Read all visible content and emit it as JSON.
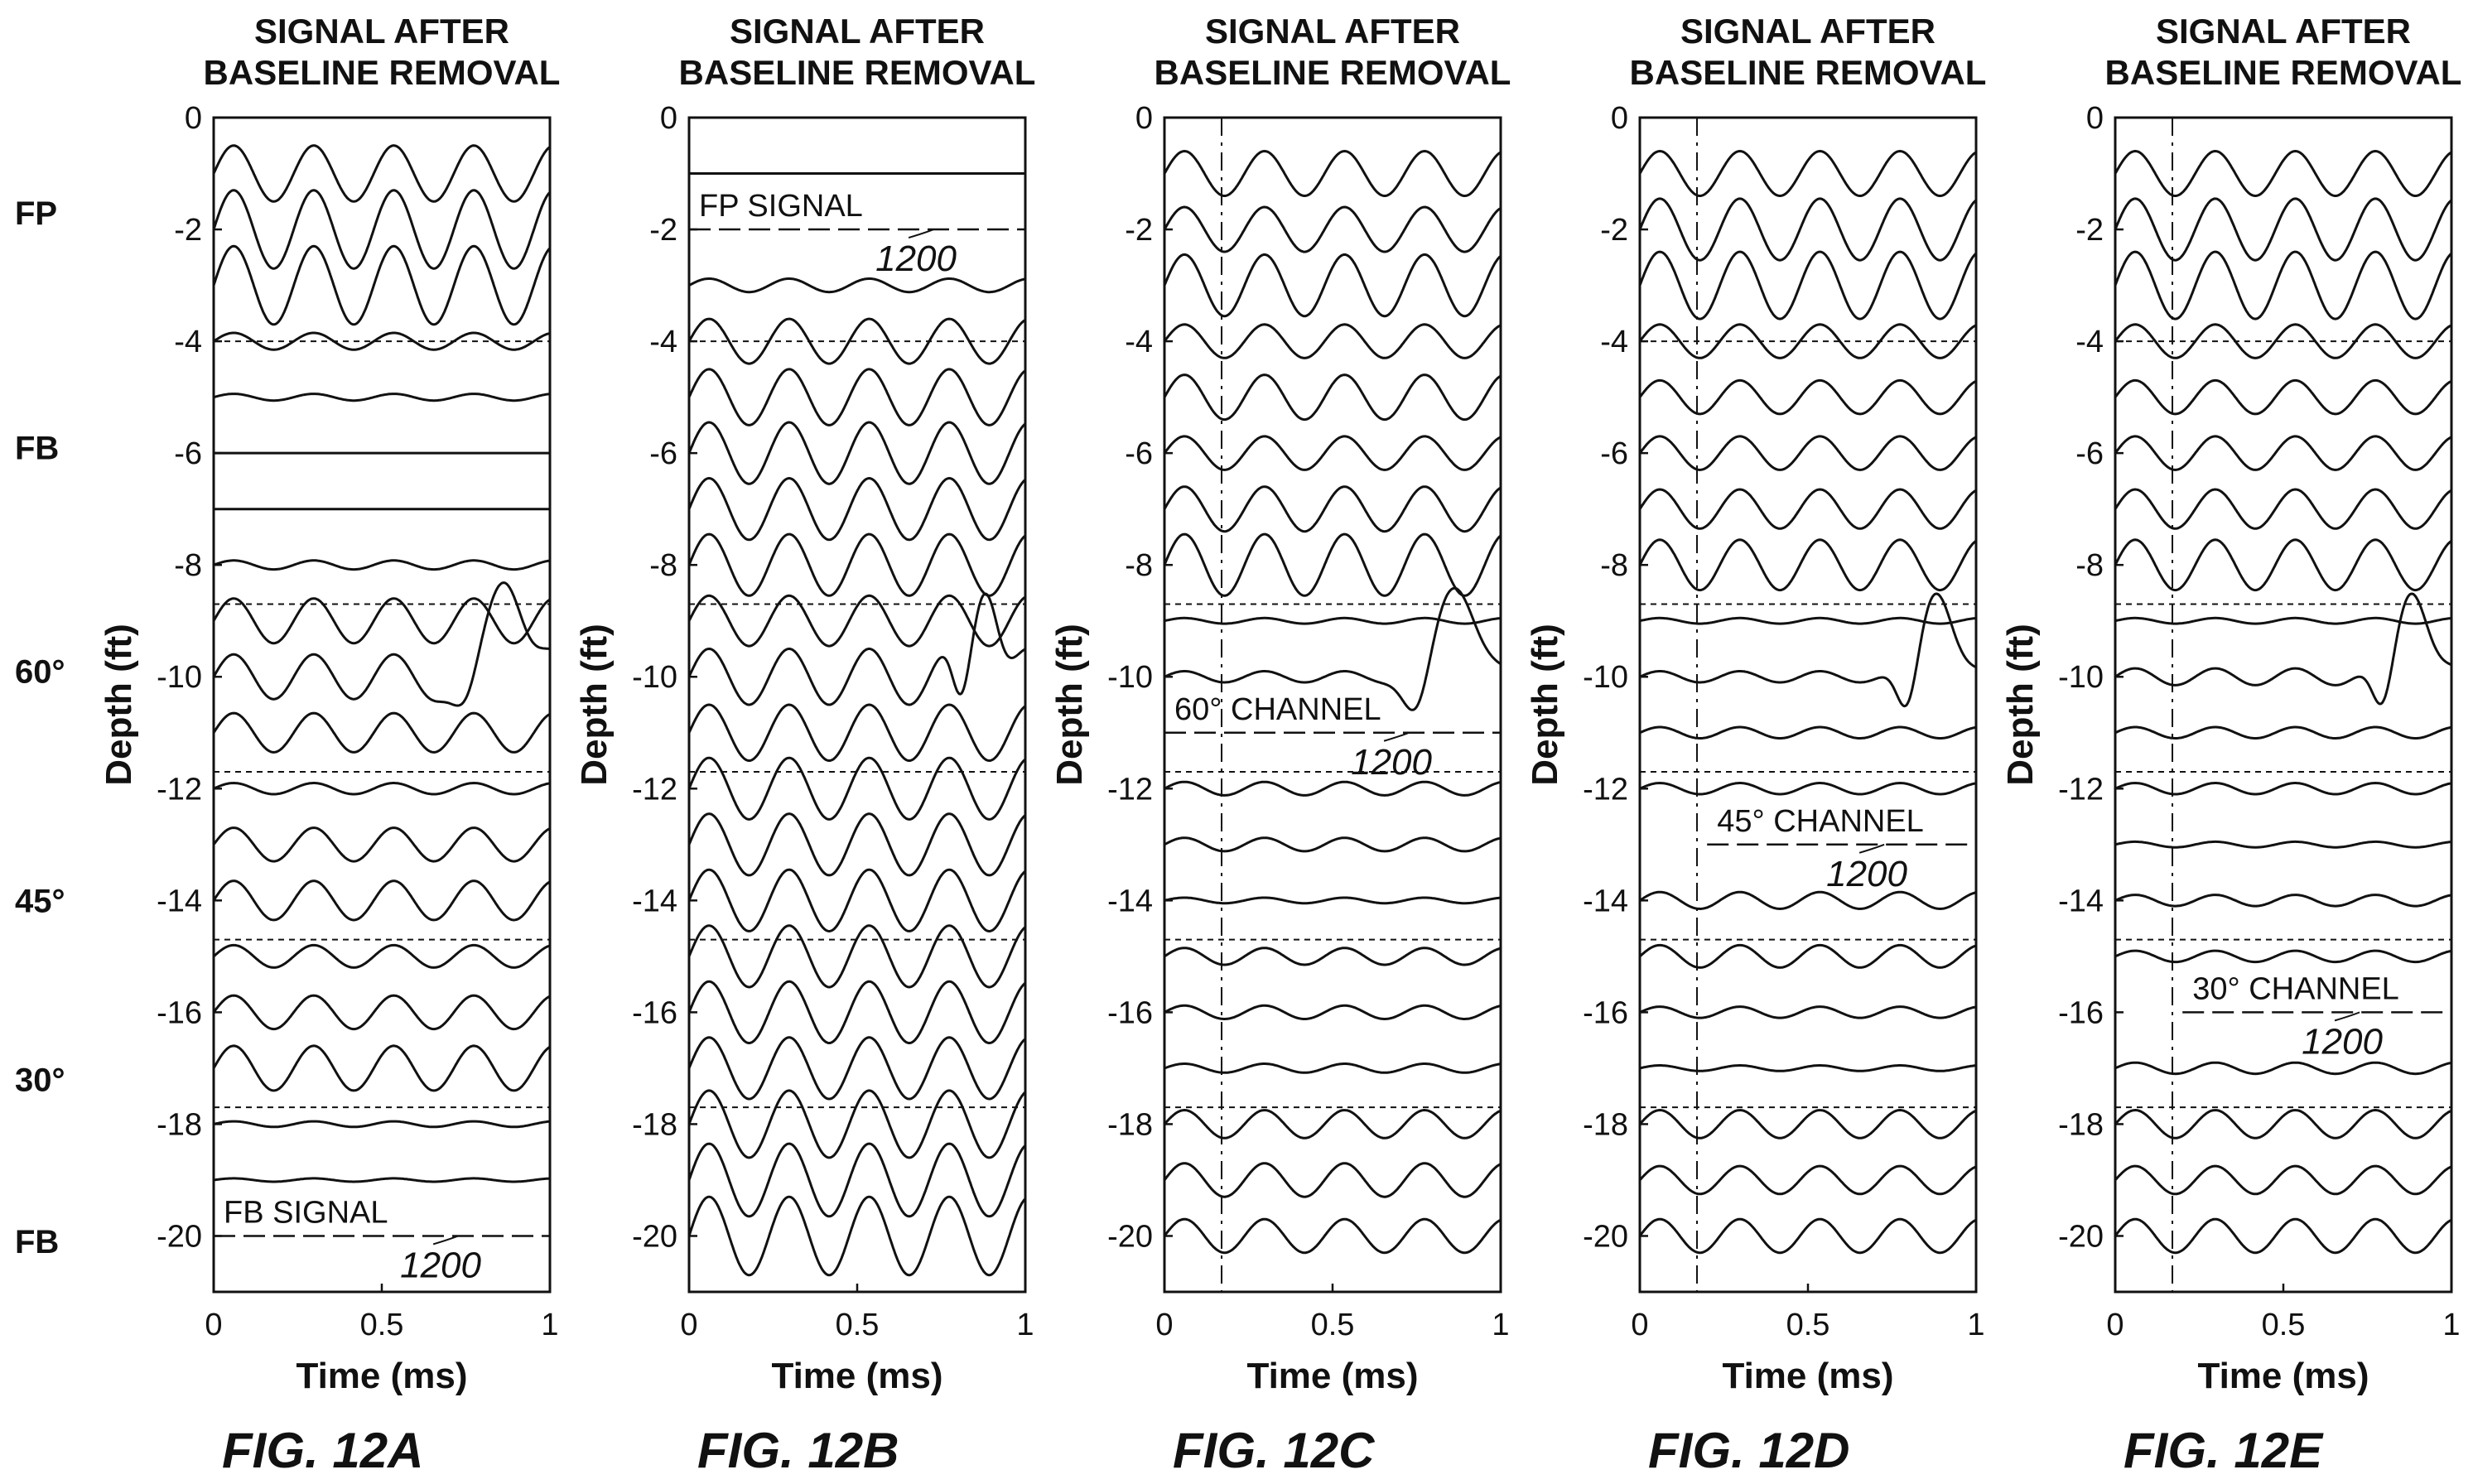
{
  "region_labels": [
    {
      "label": "FP",
      "depth": -1.7
    },
    {
      "label": "FB",
      "depth": -5.9
    },
    {
      "label": "60°",
      "depth": -9.9
    },
    {
      "label": "45°",
      "depth": -14.0
    },
    {
      "label": "30°",
      "depth": -17.2
    },
    {
      "label": "FB",
      "depth": -20.1
    }
  ],
  "chart_data": [
    {
      "type": "line",
      "figure_label": "FIG. 12A",
      "title_lines": [
        "SIGNAL AFTER",
        "BASELINE REMOVAL"
      ],
      "xlabel": "Time (ms)",
      "ylabel": "Depth (ft)",
      "xlim": [
        0,
        1
      ],
      "ylim": [
        -21,
        0
      ],
      "x_ticks": [
        "0",
        "0.5",
        "1"
      ],
      "y_ticks": [
        "0",
        "-2",
        "-4",
        "-6",
        "-8",
        "-10",
        "-12",
        "-14",
        "-16",
        "-18",
        "-20"
      ],
      "region_boundaries": [
        -4.0,
        -8.7,
        -11.7,
        -14.7,
        -17.7
      ],
      "marker_time": null,
      "annotation": {
        "text": "FB SIGNAL",
        "ref": "1200",
        "depth": -20.0,
        "x_start": 0.0,
        "x_end": 1.0
      },
      "traces": [
        {
          "depth": -1,
          "amp": 0.5,
          "freq": 4.2
        },
        {
          "depth": -2,
          "amp": 0.7,
          "freq": 4.2
        },
        {
          "depth": -3,
          "amp": 0.7,
          "freq": 4.2
        },
        {
          "depth": -4,
          "amp": 0.15,
          "freq": 4.2
        },
        {
          "depth": -5,
          "amp": 0.06,
          "freq": 4.2
        },
        {
          "depth": -6,
          "amp": 0.0,
          "freq": 4.2
        },
        {
          "depth": -7,
          "amp": 0.0,
          "freq": 4.2
        },
        {
          "depth": -8,
          "amp": 0.08,
          "freq": 4.2
        },
        {
          "depth": -9,
          "amp": 0.4,
          "freq": 4.2
        },
        {
          "depth": -10,
          "amp": 0.4,
          "freq": 4.2,
          "pulse": {
            "center": 0.86,
            "width": 0.09,
            "height": 1.7
          }
        },
        {
          "depth": -11,
          "amp": 0.35,
          "freq": 4.2
        },
        {
          "depth": -12,
          "amp": 0.1,
          "freq": 4.2
        },
        {
          "depth": -13,
          "amp": 0.3,
          "freq": 4.2
        },
        {
          "depth": -14,
          "amp": 0.35,
          "freq": 4.2
        },
        {
          "depth": -15,
          "amp": 0.2,
          "freq": 4.2
        },
        {
          "depth": -16,
          "amp": 0.3,
          "freq": 4.2
        },
        {
          "depth": -17,
          "amp": 0.4,
          "freq": 4.2
        },
        {
          "depth": -18,
          "amp": 0.05,
          "freq": 4.2
        },
        {
          "depth": -19,
          "amp": 0.03,
          "freq": 4.2
        }
      ]
    },
    {
      "type": "line",
      "figure_label": "FIG. 12B",
      "title_lines": [
        "SIGNAL AFTER",
        "BASELINE REMOVAL"
      ],
      "xlabel": "Time (ms)",
      "ylabel": "Depth (ft)",
      "xlim": [
        0,
        1
      ],
      "ylim": [
        -21,
        0
      ],
      "x_ticks": [
        "0",
        "0.5",
        "1"
      ],
      "y_ticks": [
        "0",
        "-2",
        "-4",
        "-6",
        "-8",
        "-10",
        "-12",
        "-14",
        "-16",
        "-18",
        "-20"
      ],
      "region_boundaries": [
        -4.0,
        -8.7,
        -11.7,
        -14.7,
        -17.7
      ],
      "marker_time": null,
      "annotation": {
        "text": "FP SIGNAL",
        "ref": "1200",
        "depth": -2.0,
        "x_start": 0.0,
        "x_end": 1.0
      },
      "traces": [
        {
          "depth": -1,
          "amp": 0.0,
          "freq": 4.2
        },
        {
          "depth": -3,
          "amp": 0.12,
          "freq": 4.2
        },
        {
          "depth": -4,
          "amp": 0.4,
          "freq": 4.2
        },
        {
          "depth": -5,
          "amp": 0.5,
          "freq": 4.2
        },
        {
          "depth": -6,
          "amp": 0.55,
          "freq": 4.2
        },
        {
          "depth": -7,
          "amp": 0.55,
          "freq": 4.2
        },
        {
          "depth": -8,
          "amp": 0.55,
          "freq": 4.2
        },
        {
          "depth": -9,
          "amp": 0.45,
          "freq": 4.2
        },
        {
          "depth": -10,
          "amp": 0.5,
          "freq": 4.2,
          "pulse": {
            "center": 0.88,
            "width": 0.06,
            "height": 1.5
          }
        },
        {
          "depth": -11,
          "amp": 0.5,
          "freq": 4.2
        },
        {
          "depth": -12,
          "amp": 0.55,
          "freq": 4.2
        },
        {
          "depth": -13,
          "amp": 0.55,
          "freq": 4.2
        },
        {
          "depth": -14,
          "amp": 0.55,
          "freq": 4.2
        },
        {
          "depth": -15,
          "amp": 0.55,
          "freq": 4.2
        },
        {
          "depth": -16,
          "amp": 0.55,
          "freq": 4.2
        },
        {
          "depth": -17,
          "amp": 0.55,
          "freq": 4.2
        },
        {
          "depth": -18,
          "amp": 0.6,
          "freq": 4.2
        },
        {
          "depth": -19,
          "amp": 0.65,
          "freq": 4.2
        },
        {
          "depth": -20,
          "amp": 0.7,
          "freq": 4.2
        }
      ]
    },
    {
      "type": "line",
      "figure_label": "FIG. 12C",
      "title_lines": [
        "SIGNAL AFTER",
        "BASELINE REMOVAL"
      ],
      "xlabel": "Time (ms)",
      "ylabel": "Depth (ft)",
      "xlim": [
        0,
        1
      ],
      "ylim": [
        -21,
        0
      ],
      "x_ticks": [
        "0",
        "0.5",
        "1"
      ],
      "y_ticks": [
        "0",
        "-2",
        "-4",
        "-6",
        "-8",
        "-10",
        "-12",
        "-14",
        "-16",
        "-18",
        "-20"
      ],
      "region_boundaries": [
        -8.7,
        -11.7,
        -14.7,
        -17.7
      ],
      "marker_time": 0.17,
      "annotation": {
        "text": "60° CHANNEL",
        "ref": "1200",
        "depth": -11.0,
        "x_start": 0.0,
        "x_end": 1.0
      },
      "traces": [
        {
          "depth": -1,
          "amp": 0.4,
          "freq": 4.2
        },
        {
          "depth": -2,
          "amp": 0.4,
          "freq": 4.2
        },
        {
          "depth": -3,
          "amp": 0.55,
          "freq": 4.2
        },
        {
          "depth": -4,
          "amp": 0.3,
          "freq": 4.2
        },
        {
          "depth": -5,
          "amp": 0.4,
          "freq": 4.2
        },
        {
          "depth": -6,
          "amp": 0.3,
          "freq": 4.2
        },
        {
          "depth": -7,
          "amp": 0.4,
          "freq": 4.2
        },
        {
          "depth": -8,
          "amp": 0.55,
          "freq": 4.2
        },
        {
          "depth": -9,
          "amp": 0.05,
          "freq": 4.2
        },
        {
          "depth": -10,
          "amp": 0.1,
          "freq": 4.2,
          "pulse": {
            "center": 0.86,
            "width": 0.09,
            "height": 1.6
          }
        },
        {
          "depth": -12,
          "amp": 0.12,
          "freq": 4.2
        },
        {
          "depth": -13,
          "amp": 0.12,
          "freq": 4.2
        },
        {
          "depth": -14,
          "amp": 0.05,
          "freq": 4.2
        },
        {
          "depth": -15,
          "amp": 0.15,
          "freq": 4.2
        },
        {
          "depth": -16,
          "amp": 0.12,
          "freq": 4.2
        },
        {
          "depth": -17,
          "amp": 0.08,
          "freq": 4.2
        },
        {
          "depth": -18,
          "amp": 0.25,
          "freq": 4.2
        },
        {
          "depth": -19,
          "amp": 0.3,
          "freq": 4.2
        },
        {
          "depth": -20,
          "amp": 0.3,
          "freq": 4.2
        }
      ]
    },
    {
      "type": "line",
      "figure_label": "FIG. 12D",
      "title_lines": [
        "SIGNAL AFTER",
        "BASELINE REMOVAL"
      ],
      "xlabel": "Time (ms)",
      "ylabel": "Depth (ft)",
      "xlim": [
        0,
        1
      ],
      "ylim": [
        -21,
        0
      ],
      "x_ticks": [
        "0",
        "0.5",
        "1"
      ],
      "y_ticks": [
        "0",
        "-2",
        "-4",
        "-6",
        "-8",
        "-10",
        "-12",
        "-14",
        "-16",
        "-18",
        "-20"
      ],
      "region_boundaries": [
        -4.0,
        -8.7,
        -11.7,
        -14.7,
        -17.7
      ],
      "marker_time": 0.17,
      "annotation": {
        "text": "45° CHANNEL",
        "ref": "1200",
        "depth": -13.0,
        "x_start": 0.2,
        "x_end": 0.98
      },
      "traces": [
        {
          "depth": -1,
          "amp": 0.4,
          "freq": 4.2
        },
        {
          "depth": -2,
          "amp": 0.55,
          "freq": 4.2
        },
        {
          "depth": -3,
          "amp": 0.6,
          "freq": 4.2
        },
        {
          "depth": -4,
          "amp": 0.3,
          "freq": 4.2
        },
        {
          "depth": -5,
          "amp": 0.3,
          "freq": 4.2
        },
        {
          "depth": -6,
          "amp": 0.3,
          "freq": 4.2
        },
        {
          "depth": -7,
          "amp": 0.35,
          "freq": 4.2
        },
        {
          "depth": -8,
          "amp": 0.45,
          "freq": 4.2
        },
        {
          "depth": -9,
          "amp": 0.05,
          "freq": 4.2
        },
        {
          "depth": -10,
          "amp": 0.1,
          "freq": 4.2,
          "pulse": {
            "center": 0.88,
            "width": 0.07,
            "height": 1.5
          }
        },
        {
          "depth": -11,
          "amp": 0.1,
          "freq": 4.2
        },
        {
          "depth": -12,
          "amp": 0.1,
          "freq": 4.2
        },
        {
          "depth": -14,
          "amp": 0.15,
          "freq": 4.2
        },
        {
          "depth": -15,
          "amp": 0.2,
          "freq": 4.2
        },
        {
          "depth": -16,
          "amp": 0.1,
          "freq": 4.2
        },
        {
          "depth": -17,
          "amp": 0.05,
          "freq": 4.2
        },
        {
          "depth": -18,
          "amp": 0.25,
          "freq": 4.2
        },
        {
          "depth": -19,
          "amp": 0.25,
          "freq": 4.2
        },
        {
          "depth": -20,
          "amp": 0.3,
          "freq": 4.2
        }
      ]
    },
    {
      "type": "line",
      "figure_label": "FIG. 12E",
      "title_lines": [
        "SIGNAL AFTER",
        "BASELINE REMOVAL"
      ],
      "xlabel": "Time (ms)",
      "ylabel": "Depth (ft)",
      "xlim": [
        0,
        1
      ],
      "ylim": [
        -21,
        0
      ],
      "x_ticks": [
        "0",
        "0.5",
        "1"
      ],
      "y_ticks": [
        "0",
        "-2",
        "-4",
        "-6",
        "-8",
        "-10",
        "-12",
        "-14",
        "-16",
        "-18",
        "-20"
      ],
      "region_boundaries": [
        -4.0,
        -8.7,
        -11.7,
        -14.7,
        -17.7
      ],
      "marker_time": 0.17,
      "annotation": {
        "text": "30° CHANNEL",
        "ref": "1200",
        "depth": -16.0,
        "x_start": 0.2,
        "x_end": 0.98
      },
      "traces": [
        {
          "depth": -1,
          "amp": 0.4,
          "freq": 4.2
        },
        {
          "depth": -2,
          "amp": 0.55,
          "freq": 4.2
        },
        {
          "depth": -3,
          "amp": 0.6,
          "freq": 4.2
        },
        {
          "depth": -4,
          "amp": 0.3,
          "freq": 4.2
        },
        {
          "depth": -5,
          "amp": 0.3,
          "freq": 4.2
        },
        {
          "depth": -6,
          "amp": 0.3,
          "freq": 4.2
        },
        {
          "depth": -7,
          "amp": 0.35,
          "freq": 4.2
        },
        {
          "depth": -8,
          "amp": 0.45,
          "freq": 4.2
        },
        {
          "depth": -9,
          "amp": 0.05,
          "freq": 4.2
        },
        {
          "depth": -10,
          "amp": 0.15,
          "freq": 4.2,
          "pulse": {
            "center": 0.88,
            "width": 0.07,
            "height": 1.5
          }
        },
        {
          "depth": -11,
          "amp": 0.1,
          "freq": 4.2
        },
        {
          "depth": -12,
          "amp": 0.1,
          "freq": 4.2
        },
        {
          "depth": -13,
          "amp": 0.05,
          "freq": 4.2
        },
        {
          "depth": -14,
          "amp": 0.1,
          "freq": 4.2
        },
        {
          "depth": -15,
          "amp": 0.1,
          "freq": 4.2
        },
        {
          "depth": -17,
          "amp": 0.1,
          "freq": 4.2
        },
        {
          "depth": -18,
          "amp": 0.25,
          "freq": 4.2
        },
        {
          "depth": -19,
          "amp": 0.25,
          "freq": 4.2
        },
        {
          "depth": -20,
          "amp": 0.3,
          "freq": 4.2
        }
      ]
    }
  ]
}
